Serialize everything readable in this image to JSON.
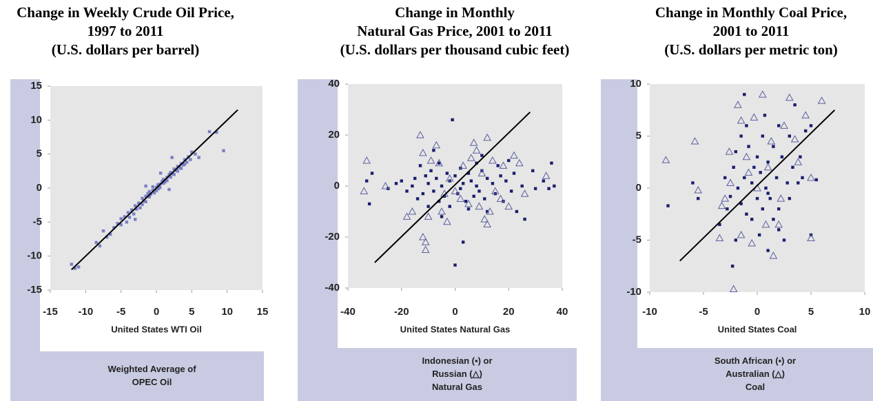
{
  "chart_data": [
    {
      "type": "scatter",
      "title": [
        "Change in Weekly Crude Oil Price,",
        "1997 to 2011",
        "(U.S. dollars per barrel)"
      ],
      "xlabel": "United States WTI Oil",
      "ylabel": [
        "Weighted Average of",
        "OPEC Oil"
      ],
      "xlim": [
        -15,
        15
      ],
      "ylim": [
        -15,
        15
      ],
      "xticks": [
        -15,
        -10,
        -5,
        0,
        5,
        10,
        15
      ],
      "yticks": [
        -15,
        -10,
        -5,
        0,
        5,
        10,
        15
      ],
      "series": [
        {
          "color": "#7b7fc4",
          "marker": "square",
          "x": [
            -12,
            -11.5,
            -11,
            -8.5,
            -8,
            -7,
            -6.5,
            -6,
            -5.5,
            -5,
            -5,
            -4.5,
            -4.2,
            -4,
            -3.8,
            -3.5,
            -3.2,
            -3,
            -2.8,
            -2.5,
            -2.3,
            -2,
            -2,
            -1.8,
            -1.5,
            -1.5,
            -1.2,
            -1,
            -1,
            -0.8,
            -0.5,
            -0.5,
            -0.3,
            0,
            0,
            0.2,
            0.3,
            0.5,
            0.5,
            0.8,
            1,
            1,
            1.2,
            1.5,
            1.5,
            1.8,
            2,
            2,
            2.3,
            2.5,
            2.5,
            2.8,
            3,
            3,
            3.3,
            3.5,
            3.5,
            3.8,
            4,
            4,
            4.3,
            4.5,
            4.8,
            5,
            5.5,
            6,
            7.5,
            8.5,
            9.5,
            -3,
            -7.5,
            2.2,
            -1.5,
            1.8,
            0.6
          ],
          "values": [
            -11.2,
            -11.8,
            -11.6,
            -8,
            -8.5,
            -7.2,
            -6.8,
            -5.8,
            -5.2,
            -4.5,
            -5.4,
            -4.2,
            -5,
            -3.6,
            -4.3,
            -3.2,
            -3.8,
            -2.6,
            -3.1,
            -2.2,
            -2.9,
            -1.5,
            -2.4,
            -1.9,
            -1.2,
            -2,
            -0.8,
            -1.3,
            -0.5,
            -0.9,
            -0.3,
            0.2,
            -0.7,
            0.1,
            -0.4,
            0.5,
            -0.1,
            0.6,
            0.1,
            1,
            0.7,
            1.3,
            0.9,
            1.6,
            1.1,
            2,
            1.6,
            2.3,
            2.1,
            2.8,
            2,
            2.6,
            3.2,
            2.5,
            3,
            3.6,
            2.9,
            3.4,
            4.2,
            3.5,
            3.8,
            4.6,
            4.2,
            5.3,
            5,
            4.5,
            8.3,
            8.2,
            5.5,
            -4.6,
            -6.3,
            4.5,
            0.3,
            -0.2,
            2.2
          ]
        }
      ],
      "fit_line": {
        "color": "#000000",
        "x": [
          -12,
          11.5
        ],
        "values": [
          -12,
          11.5
        ]
      }
    },
    {
      "type": "scatter",
      "title": [
        "Change in Monthly",
        "Natural Gas Price, 2001 to 2011",
        "(U.S. dollars per thousand cubic feet)"
      ],
      "xlabel": "United States Natural Gas",
      "ylabel": [
        "Indonesian (▪) or",
        "Russian (△)",
        "Natural Gas"
      ],
      "xlim": [
        -40,
        40
      ],
      "ylim": [
        -40,
        40
      ],
      "xticks": [
        -40,
        -20,
        0,
        20,
        40
      ],
      "yticks": [
        -40,
        -20,
        0,
        20,
        40
      ],
      "series": [
        {
          "color": "#1a1f6e",
          "marker": "square",
          "x": [
            -33,
            -32,
            -31,
            -25,
            -22,
            -20,
            -18,
            -16,
            -15,
            -14,
            -13,
            -12,
            -11,
            -10,
            -10,
            -9,
            -8,
            -7,
            -6,
            -6,
            -5,
            -4,
            -3,
            -2,
            -2,
            -1,
            0,
            0,
            1,
            2,
            2,
            3,
            3,
            4,
            5,
            5,
            6,
            7,
            8,
            8,
            9,
            10,
            11,
            12,
            12,
            14,
            15,
            16,
            17,
            18,
            19,
            20,
            21,
            22,
            23,
            25,
            26,
            29,
            30,
            33,
            35,
            36,
            37,
            -5,
            10,
            -8
          ],
          "values": [
            2,
            -7,
            5,
            -1,
            1,
            2,
            -2,
            0,
            3,
            -5,
            8,
            -3,
            4,
            1,
            -8,
            6,
            -2,
            3,
            -6,
            9,
            0,
            -4,
            5,
            2,
            -8,
            26,
            -31,
            4,
            -3,
            7,
            -1,
            -22,
            1,
            -6,
            5,
            -9,
            2,
            -4,
            9,
            0,
            -2,
            6,
            -5,
            3,
            -10,
            1,
            -3,
            8,
            4,
            -6,
            2,
            10,
            -2,
            5,
            -10,
            0,
            -13,
            6,
            -1,
            2,
            -1,
            9,
            0,
            -12,
            12,
            14
          ]
        },
        {
          "color": "#5a5f9e",
          "marker": "triangle",
          "x": [
            -34,
            -33,
            -26,
            -18,
            -16,
            -13,
            -12,
            -12,
            -11,
            -11,
            -10,
            -9,
            -7,
            -6,
            -5,
            -3,
            -2,
            0,
            2,
            5,
            6,
            7,
            8,
            9,
            10,
            11,
            12,
            12,
            13,
            14,
            15,
            17,
            18,
            20,
            22,
            24,
            26,
            34,
            -4,
            3
          ],
          "values": [
            -2,
            10,
            0,
            -12,
            -10,
            20,
            13,
            -20,
            -25,
            -22,
            -12,
            10,
            16,
            9,
            -10,
            -14,
            3,
            -2,
            -5,
            -7,
            11,
            17,
            14,
            -8,
            5,
            -13,
            19,
            -15,
            -10,
            10,
            -2,
            -5,
            8,
            -8,
            12,
            9,
            -3,
            4,
            -3,
            8
          ]
        }
      ],
      "fit_line": {
        "color": "#000000",
        "x": [
          -30,
          28
        ],
        "values": [
          -30,
          29
        ]
      }
    },
    {
      "type": "scatter",
      "title": [
        "Change in Monthly Coal Price,",
        "2001 to 2011",
        "(U.S. dollars per metric ton)"
      ],
      "xlabel": "United States Coal",
      "ylabel": [
        "South African (▪) or",
        "Australian (△)",
        "Coal"
      ],
      "xlim": [
        -10,
        10
      ],
      "ylim": [
        -10,
        10
      ],
      "xticks": [
        -10,
        -5,
        0,
        5,
        10
      ],
      "yticks": [
        -10,
        -5,
        0,
        5,
        10
      ],
      "series": [
        {
          "color": "#1a1f6e",
          "marker": "square",
          "x": [
            -8.3,
            -6,
            -5.5,
            -3.5,
            -3,
            -2.8,
            -2.5,
            -2.2,
            -2,
            -2,
            -1.8,
            -1.5,
            -1.2,
            -1.2,
            -1,
            -1,
            -0.8,
            -0.5,
            -0.5,
            -0.3,
            0,
            0,
            0.2,
            0.3,
            0.5,
            0.5,
            0.8,
            1,
            1,
            1.2,
            1.5,
            1.5,
            1.8,
            2,
            2,
            2.3,
            2.5,
            2.8,
            3,
            3,
            3.3,
            3.5,
            3.8,
            4,
            4.2,
            4.5,
            5,
            5,
            5.5,
            -2.3,
            0.7,
            -1.5,
            2,
            1
          ],
          "values": [
            -1.7,
            0.5,
            -1,
            -3.5,
            1,
            -2,
            -0.8,
            2,
            -5,
            3.5,
            0,
            -1.5,
            9,
            1,
            6,
            -2.5,
            4,
            0.5,
            -3,
            2,
            -1,
            3,
            -4.5,
            1.5,
            -2,
            5,
            0,
            -6,
            2.5,
            -1,
            4,
            -3,
            1,
            6,
            -2,
            3,
            -5,
            0.5,
            5,
            -1,
            2,
            8,
            0.5,
            3,
            1,
            5.5,
            -4.5,
            6,
            0.8,
            -7.5,
            7,
            5,
            -4,
            -0.5
          ]
        },
        {
          "color": "#5a5f9e",
          "marker": "triangle",
          "x": [
            -8.5,
            -5.8,
            -5.5,
            -3.5,
            -3.3,
            -3,
            -2.6,
            -2.5,
            -2.2,
            -1.8,
            -1.5,
            -1.5,
            -1,
            -0.5,
            -0.3,
            0,
            0.5,
            0.8,
            1,
            1.5,
            2,
            2.5,
            3,
            3.5,
            3.8,
            4.5,
            5,
            5,
            6,
            2.2,
            -0.8,
            1.3
          ],
          "values": [
            2.7,
            4.5,
            -0.2,
            -4.8,
            -1.7,
            -1,
            3.5,
            0.5,
            -9.7,
            8,
            6.5,
            -4.5,
            3,
            -5.3,
            6.8,
            0,
            9,
            -3.5,
            2,
            -6.5,
            -3.5,
            6,
            8.7,
            4.7,
            2.5,
            7,
            1,
            -4.8,
            8.4,
            -1,
            1.5,
            4.5
          ]
        }
      ],
      "fit_line": {
        "color": "#000000",
        "x": [
          -7.2,
          7.2
        ],
        "values": [
          -7,
          7.5
        ]
      }
    }
  ]
}
